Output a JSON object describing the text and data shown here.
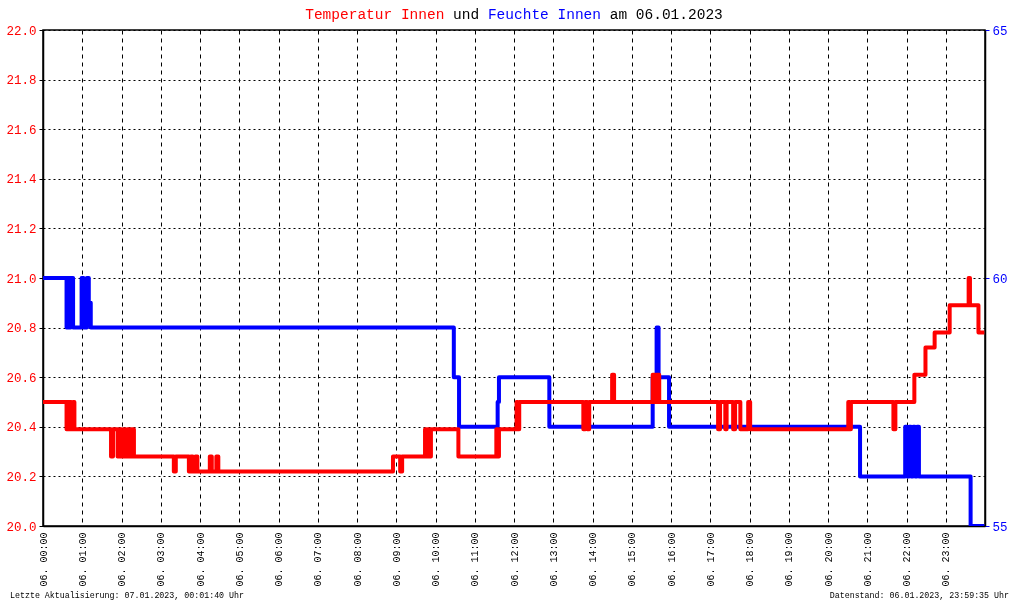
{
  "chart_data": {
    "type": "step",
    "title": "Temperatur Innen und Feuchte Innen am 06.01.2023",
    "xlim": [
      "2023-01-06T00:00",
      "2023-01-07T00:00"
    ],
    "xticks": [
      {
        "value": "2023-01-06T00:00",
        "label": "06. 00:00"
      },
      {
        "value": "2023-01-06T01:00",
        "label": "06. 01:00"
      },
      {
        "value": "2023-01-06T02:00",
        "label": "06. 02:00"
      },
      {
        "value": "2023-01-06T03:00",
        "label": "06. 03:00"
      },
      {
        "value": "2023-01-06T04:00",
        "label": "06. 04:00"
      },
      {
        "value": "2023-01-06T05:00",
        "label": "06. 05:00"
      },
      {
        "value": "2023-01-06T06:00",
        "label": "06. 06:00"
      },
      {
        "value": "2023-01-06T07:00",
        "label": "06. 07:00"
      },
      {
        "value": "2023-01-06T08:00",
        "label": "06. 08:00"
      },
      {
        "value": "2023-01-06T09:00",
        "label": "06. 09:00"
      },
      {
        "value": "2023-01-06T10:00",
        "label": "06. 10:00"
      },
      {
        "value": "2023-01-06T11:00",
        "label": "06. 11:00"
      },
      {
        "value": "2023-01-06T12:00",
        "label": "06. 12:00"
      },
      {
        "value": "2023-01-06T13:00",
        "label": "06. 13:00"
      },
      {
        "value": "2023-01-06T14:00",
        "label": "06. 14:00"
      },
      {
        "value": "2023-01-06T15:00",
        "label": "06. 15:00"
      },
      {
        "value": "2023-01-06T16:00",
        "label": "06. 16:00"
      },
      {
        "value": "2023-01-06T17:00",
        "label": "06. 17:00"
      },
      {
        "value": "2023-01-06T18:00",
        "label": "06. 18:00"
      },
      {
        "value": "2023-01-06T19:00",
        "label": "06. 19:00"
      },
      {
        "value": "2023-01-06T20:00",
        "label": "06. 20:00"
      },
      {
        "value": "2023-01-06T21:00",
        "label": "06. 21:00"
      },
      {
        "value": "2023-01-06T22:00",
        "label": "06. 22:00"
      },
      {
        "value": "2023-01-06T23:00",
        "label": "06. 23:00"
      }
    ],
    "ylim": [
      20.0,
      22.0
    ],
    "yticks": [
      {
        "value": 20,
        "label": "20.0"
      },
      20.2,
      20.4,
      20.6,
      20.8,
      {
        "value": 21,
        "label": "21.0"
      },
      21.2,
      21.4,
      21.6,
      21.8,
      {
        "value": 22,
        "label": "22.0"
      }
    ],
    "y2lim": [
      55,
      65
    ],
    "y2ticks": [
      55,
      60,
      65
    ],
    "grid": true,
    "series": [
      {
        "color": "#ff0000",
        "axis": "y",
        "x": [
          "2023-01-06T00:00",
          "2023-01-06T00:36",
          "2023-01-06T00:37",
          "2023-01-06T00:39",
          "2023-01-06T00:41",
          "2023-01-06T00:43",
          "2023-01-06T00:46",
          "2023-01-06T00:48",
          "2023-01-06T01:44",
          "2023-01-06T01:47",
          "2023-01-06T01:54",
          "2023-01-06T01:57",
          "2023-01-06T02:00",
          "2023-01-06T02:03",
          "2023-01-06T02:06",
          "2023-01-06T02:09",
          "2023-01-06T02:12",
          "2023-01-06T02:15",
          "2023-01-06T02:19",
          "2023-01-06T03:20",
          "2023-01-06T03:23",
          "2023-01-06T03:43",
          "2023-01-06T03:46",
          "2023-01-06T03:49",
          "2023-01-06T03:53",
          "2023-01-06T03:56",
          "2023-01-06T04:15",
          "2023-01-06T04:18",
          "2023-01-06T04:25",
          "2023-01-06T04:28",
          "2023-01-06T08:55",
          "2023-01-06T09:06",
          "2023-01-06T09:09",
          "2023-01-06T09:44",
          "2023-01-06T09:46",
          "2023-01-06T09:48",
          "2023-01-06T09:50",
          "2023-01-06T09:53",
          "2023-01-06T10:35",
          "2023-01-06T11:33",
          "2023-01-06T11:35",
          "2023-01-06T11:37",
          "2023-01-06T12:04",
          "2023-01-06T12:06",
          "2023-01-06T12:08",
          "2023-01-06T13:46",
          "2023-01-06T13:49",
          "2023-01-06T13:52",
          "2023-01-06T13:55",
          "2023-01-06T14:30",
          "2023-01-06T14:33",
          "2023-01-06T15:32",
          "2023-01-06T15:36",
          "2023-01-06T15:38",
          "2023-01-06T15:42",
          "2023-01-06T17:12",
          "2023-01-06T17:15",
          "2023-01-06T17:23",
          "2023-01-06T17:25",
          "2023-01-06T17:35",
          "2023-01-06T17:38",
          "2023-01-06T17:46",
          "2023-01-06T17:58",
          "2023-01-06T18:01",
          "2023-01-06T20:31",
          "2023-01-06T20:33",
          "2023-01-06T20:35",
          "2023-01-06T21:40",
          "2023-01-06T21:43",
          "2023-01-06T22:12",
          "2023-01-06T22:29",
          "2023-01-06T22:43",
          "2023-01-06T23:06",
          "2023-01-06T23:35",
          "2023-01-06T23:37",
          "2023-01-06T23:50",
          "2023-01-06T23:59"
        ],
        "values": [
          20.5,
          20.39,
          20.5,
          20.39,
          20.5,
          20.39,
          20.5,
          20.39,
          20.28,
          20.39,
          20.28,
          20.39,
          20.28,
          20.39,
          20.28,
          20.39,
          20.28,
          20.39,
          20.28,
          20.22,
          20.28,
          20.22,
          20.28,
          20.22,
          20.28,
          20.22,
          20.28,
          20.22,
          20.28,
          20.22,
          20.28,
          20.22,
          20.28,
          20.39,
          20.28,
          20.39,
          20.28,
          20.39,
          20.28,
          20.39,
          20.28,
          20.39,
          20.5,
          20.39,
          20.5,
          20.39,
          20.5,
          20.39,
          20.5,
          20.61,
          20.5,
          20.61,
          20.5,
          20.61,
          20.5,
          20.39,
          20.5,
          20.39,
          20.5,
          20.39,
          20.5,
          20.39,
          20.5,
          20.39,
          20.5,
          20.39,
          20.5,
          20.39,
          20.5,
          20.61,
          20.72,
          20.78,
          20.89,
          21.0,
          20.89,
          20.78,
          20.78
        ]
      },
      {
        "color": "#0000ff",
        "axis": "y2",
        "x": [
          "2023-01-06T00:00",
          "2023-01-06T00:36",
          "2023-01-06T00:37",
          "2023-01-06T00:38",
          "2023-01-06T00:40",
          "2023-01-06T00:41",
          "2023-01-06T00:42",
          "2023-01-06T00:46",
          "2023-01-06T00:59",
          "2023-01-06T01:02",
          "2023-01-06T01:07",
          "2023-01-06T01:10",
          "2023-01-06T01:13",
          "2023-01-06T10:28",
          "2023-01-06T10:36",
          "2023-01-06T11:35",
          "2023-01-06T11:37",
          "2023-01-06T12:54",
          "2023-01-06T15:32",
          "2023-01-06T15:38",
          "2023-01-06T15:41",
          "2023-01-06T15:57",
          "2023-01-06T20:49",
          "2023-01-06T21:58",
          "2023-01-06T22:01",
          "2023-01-06T22:04",
          "2023-01-06T22:07",
          "2023-01-06T22:10",
          "2023-01-06T22:13",
          "2023-01-06T22:16",
          "2023-01-06T22:19",
          "2023-01-06T23:38",
          "2023-01-06T23:59"
        ],
        "values": [
          60,
          59,
          60,
          59,
          60,
          59,
          60,
          59,
          60,
          59,
          60,
          59.5,
          59,
          58,
          57,
          57.5,
          58,
          57,
          58,
          59,
          58,
          57,
          56,
          57,
          56,
          57,
          56,
          57,
          56,
          57,
          56,
          55,
          55
        ]
      }
    ],
    "annotations": [
      "Letzte Aktualisierung: 07.01.2023, 00:01:40 Uhr",
      "Datenstand: 06.01.2023, 23:59:35 Uhr"
    ]
  }
}
